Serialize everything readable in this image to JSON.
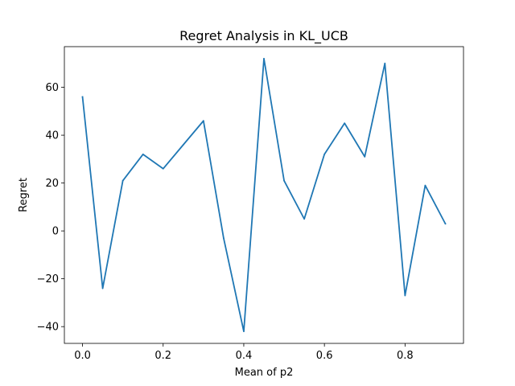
{
  "chart_data": {
    "type": "line",
    "title": "Regret Analysis in KL_UCB",
    "xlabel": "Mean of p2",
    "ylabel": "Regret",
    "xlim": [
      -0.045,
      0.945
    ],
    "ylim": [
      -47,
      77
    ],
    "x_ticks": [
      0.0,
      0.2,
      0.4,
      0.6,
      0.8
    ],
    "x_tick_labels": [
      "0.0",
      "0.2",
      "0.4",
      "0.6",
      "0.8"
    ],
    "y_ticks": [
      -40,
      -20,
      0,
      20,
      40,
      60
    ],
    "y_tick_labels": [
      "−40",
      "−20",
      "0",
      "20",
      "40",
      "60"
    ],
    "grid": false,
    "series": [
      {
        "color": "#1f77b4",
        "x": [
          0.0,
          0.05,
          0.1,
          0.15,
          0.2,
          0.25,
          0.3,
          0.35,
          0.4,
          0.45,
          0.5,
          0.55,
          0.6,
          0.65,
          0.7,
          0.75,
          0.8,
          0.85,
          0.9
        ],
        "y": [
          56,
          -24,
          21,
          32,
          26,
          36,
          46,
          -3,
          -42,
          72,
          21,
          5,
          32,
          45,
          31,
          70,
          -27,
          19,
          3
        ]
      }
    ]
  }
}
